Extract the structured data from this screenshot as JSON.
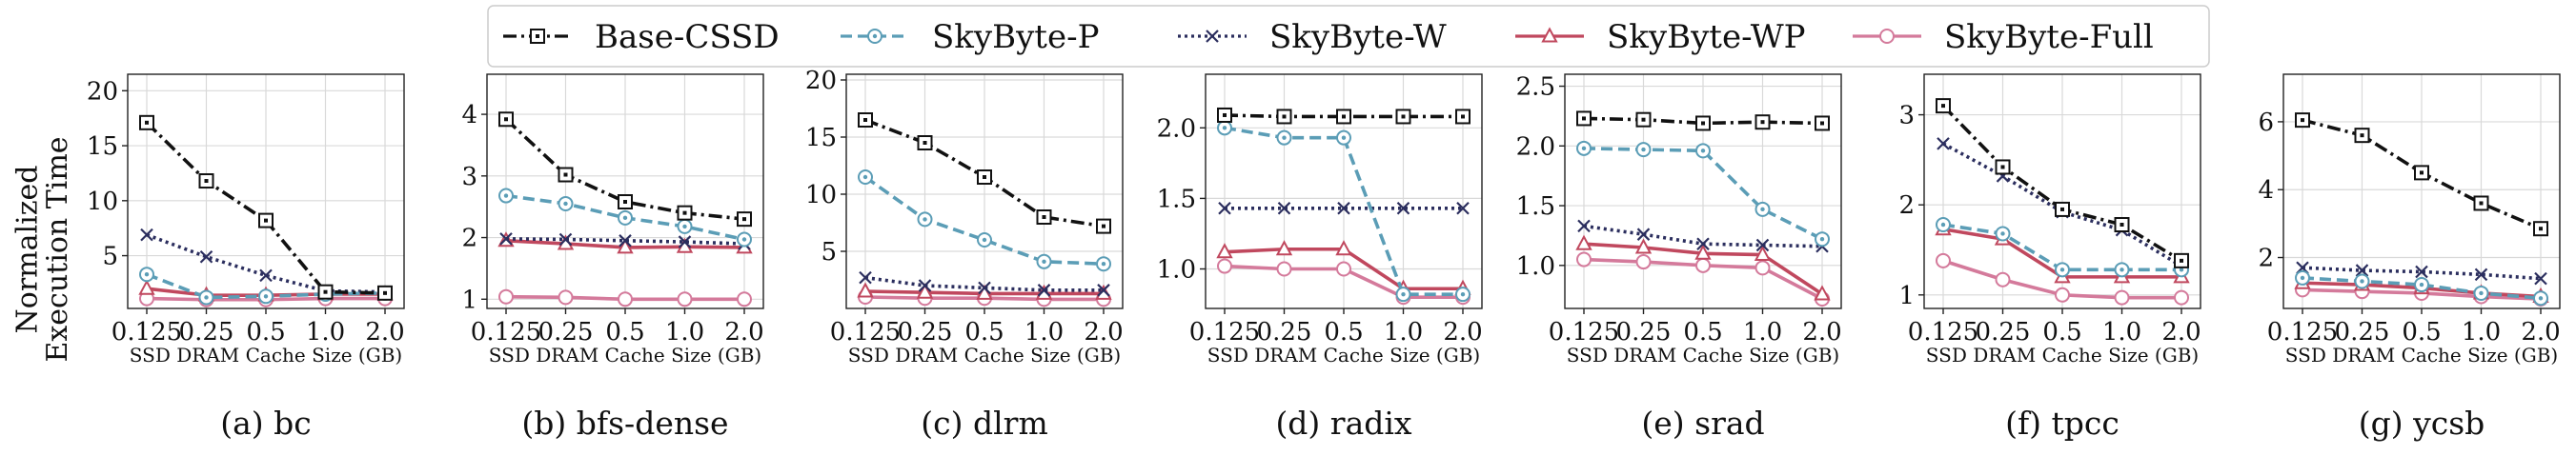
{
  "figure": {
    "ylabel_lines": [
      "Normalized",
      "Execution Time"
    ],
    "xlabel": "SSD DRAM Cache Size (GB)"
  },
  "legend": [
    {
      "name": "Base-CSSD",
      "color": "#111111",
      "dash": "dashdot",
      "marker": "square-dot"
    },
    {
      "name": "SkyByte-P",
      "color": "#5b9db6",
      "dash": "dashed",
      "marker": "circle-dot"
    },
    {
      "name": "SkyByte-W",
      "color": "#2b2e5e",
      "dash": "dotted",
      "marker": "x"
    },
    {
      "name": "SkyByte-WP",
      "color": "#c0485e",
      "dash": "solid",
      "marker": "triangle"
    },
    {
      "name": "SkyByte-Full",
      "color": "#d47a9b",
      "dash": "solid",
      "marker": "circle"
    }
  ],
  "chart_data": [
    {
      "type": "line",
      "title": "(a) bc",
      "xlabel": "SSD DRAM Cache Size (GB)",
      "ylabel": "Normalized Execution Time",
      "categories": [
        "0.125",
        "0.25",
        "0.5",
        "1.0",
        "2.0"
      ],
      "ylim": [
        0.2,
        21.5
      ],
      "yticks": [
        "5",
        "10",
        "15",
        "20"
      ],
      "ytick_values": [
        5,
        10,
        15,
        20
      ],
      "grid": true,
      "series": [
        {
          "name": "Base-CSSD",
          "values": [
            17.1,
            11.8,
            8.2,
            1.7,
            1.6
          ]
        },
        {
          "name": "SkyByte-P",
          "values": [
            3.3,
            1.2,
            1.3,
            1.5,
            1.6
          ]
        },
        {
          "name": "SkyByte-W",
          "values": [
            6.9,
            4.9,
            3.2,
            1.8,
            1.7
          ]
        },
        {
          "name": "SkyByte-WP",
          "values": [
            2.0,
            1.4,
            1.4,
            1.5,
            1.5
          ]
        },
        {
          "name": "SkyByte-Full",
          "values": [
            1.1,
            1.0,
            1.0,
            1.1,
            1.1
          ]
        }
      ]
    },
    {
      "type": "line",
      "title": "(b) bfs-dense",
      "xlabel": "SSD DRAM Cache Size (GB)",
      "ylabel": "",
      "categories": [
        "0.125",
        "0.25",
        "0.5",
        "1.0",
        "2.0"
      ],
      "ylim": [
        0.85,
        4.65
      ],
      "yticks": [
        "1",
        "2",
        "3",
        "4"
      ],
      "ytick_values": [
        1,
        2,
        3,
        4
      ],
      "grid": true,
      "series": [
        {
          "name": "Base-CSSD",
          "values": [
            3.92,
            3.02,
            2.58,
            2.4,
            2.3
          ]
        },
        {
          "name": "SkyByte-P",
          "values": [
            2.68,
            2.55,
            2.32,
            2.18,
            1.97
          ]
        },
        {
          "name": "SkyByte-W",
          "values": [
            1.98,
            1.97,
            1.95,
            1.93,
            1.9
          ]
        },
        {
          "name": "SkyByte-WP",
          "values": [
            1.95,
            1.9,
            1.84,
            1.85,
            1.84
          ]
        },
        {
          "name": "SkyByte-Full",
          "values": [
            1.04,
            1.03,
            1.0,
            1.0,
            1.0
          ]
        }
      ]
    },
    {
      "type": "line",
      "title": "(c) dlrm",
      "xlabel": "SSD DRAM Cache Size (GB)",
      "ylabel": "",
      "categories": [
        "0.125",
        "0.25",
        "0.5",
        "1.0",
        "2.0"
      ],
      "ylim": [
        0.0,
        20.5
      ],
      "yticks": [
        "5",
        "10",
        "15",
        "20"
      ],
      "ytick_values": [
        5,
        10,
        15,
        20
      ],
      "grid": true,
      "series": [
        {
          "name": "Base-CSSD",
          "values": [
            16.5,
            14.5,
            11.5,
            8.0,
            7.2
          ]
        },
        {
          "name": "SkyByte-P",
          "values": [
            11.5,
            7.8,
            6.0,
            4.1,
            3.9
          ]
        },
        {
          "name": "SkyByte-W",
          "values": [
            2.7,
            2.0,
            1.8,
            1.6,
            1.6
          ]
        },
        {
          "name": "SkyByte-WP",
          "values": [
            1.5,
            1.4,
            1.3,
            1.3,
            1.3
          ]
        },
        {
          "name": "SkyByte-Full",
          "values": [
            1.0,
            0.9,
            0.9,
            0.8,
            0.8
          ]
        }
      ]
    },
    {
      "type": "line",
      "title": "(d) radix",
      "xlabel": "SSD DRAM Cache Size (GB)",
      "ylabel": "",
      "categories": [
        "0.125",
        "0.25",
        "0.5",
        "1.0",
        "2.0"
      ],
      "ylim": [
        0.72,
        2.38
      ],
      "yticks": [
        "1.0",
        "1.5",
        "2.0"
      ],
      "ytick_values": [
        1.0,
        1.5,
        2.0
      ],
      "grid": true,
      "series": [
        {
          "name": "Base-CSSD",
          "values": [
            2.09,
            2.08,
            2.08,
            2.08,
            2.08
          ]
        },
        {
          "name": "SkyByte-P",
          "values": [
            2.0,
            1.93,
            1.93,
            0.82,
            0.82
          ]
        },
        {
          "name": "SkyByte-W",
          "values": [
            1.43,
            1.43,
            1.43,
            1.43,
            1.43
          ]
        },
        {
          "name": "SkyByte-WP",
          "values": [
            1.12,
            1.14,
            1.14,
            0.86,
            0.86
          ]
        },
        {
          "name": "SkyByte-Full",
          "values": [
            1.02,
            1.0,
            1.0,
            0.8,
            0.8
          ]
        }
      ]
    },
    {
      "type": "line",
      "title": "(e) srad",
      "xlabel": "SSD DRAM Cache Size (GB)",
      "ylabel": "",
      "categories": [
        "0.125",
        "0.25",
        "0.5",
        "1.0",
        "2.0"
      ],
      "ylim": [
        0.64,
        2.6
      ],
      "yticks": [
        "1.0",
        "1.5",
        "2.0",
        "2.5"
      ],
      "ytick_values": [
        1.0,
        1.5,
        2.0,
        2.5
      ],
      "grid": true,
      "series": [
        {
          "name": "Base-CSSD",
          "values": [
            2.23,
            2.22,
            2.19,
            2.2,
            2.19
          ]
        },
        {
          "name": "SkyByte-P",
          "values": [
            1.98,
            1.97,
            1.96,
            1.47,
            1.22
          ]
        },
        {
          "name": "SkyByte-W",
          "values": [
            1.33,
            1.26,
            1.18,
            1.17,
            1.16
          ]
        },
        {
          "name": "SkyByte-WP",
          "values": [
            1.18,
            1.15,
            1.1,
            1.09,
            0.76
          ]
        },
        {
          "name": "SkyByte-Full",
          "values": [
            1.05,
            1.03,
            1.0,
            0.98,
            0.72
          ]
        }
      ]
    },
    {
      "type": "line",
      "title": "(f) tpcc",
      "xlabel": "SSD DRAM Cache Size (GB)",
      "ylabel": "",
      "categories": [
        "0.125",
        "0.25",
        "0.5",
        "1.0",
        "2.0"
      ],
      "ylim": [
        0.85,
        3.45
      ],
      "yticks": [
        "1",
        "2",
        "3"
      ],
      "ytick_values": [
        1,
        2,
        3
      ],
      "grid": true,
      "series": [
        {
          "name": "Base-CSSD",
          "values": [
            3.1,
            2.42,
            1.95,
            1.78,
            1.38
          ]
        },
        {
          "name": "SkyByte-P",
          "values": [
            1.78,
            1.68,
            1.28,
            1.28,
            1.28
          ]
        },
        {
          "name": "SkyByte-W",
          "values": [
            2.68,
            2.32,
            1.92,
            1.72,
            1.32
          ]
        },
        {
          "name": "SkyByte-WP",
          "values": [
            1.73,
            1.62,
            1.2,
            1.2,
            1.2
          ]
        },
        {
          "name": "SkyByte-Full",
          "values": [
            1.38,
            1.17,
            1.0,
            0.97,
            0.97
          ]
        }
      ]
    },
    {
      "type": "line",
      "title": "(g) ycsb",
      "xlabel": "SSD DRAM Cache Size (GB)",
      "ylabel": "",
      "categories": [
        "0.125",
        "0.25",
        "0.5",
        "1.0",
        "2.0"
      ],
      "ylim": [
        0.5,
        7.4
      ],
      "yticks": [
        "2",
        "4",
        "6"
      ],
      "ytick_values": [
        2,
        4,
        6
      ],
      "grid": true,
      "series": [
        {
          "name": "Base-CSSD",
          "values": [
            6.05,
            5.6,
            4.5,
            3.6,
            2.85
          ]
        },
        {
          "name": "SkyByte-P",
          "values": [
            1.4,
            1.3,
            1.2,
            0.95,
            0.8
          ]
        },
        {
          "name": "SkyByte-W",
          "values": [
            1.7,
            1.62,
            1.58,
            1.5,
            1.38
          ]
        },
        {
          "name": "SkyByte-WP",
          "values": [
            1.25,
            1.2,
            1.1,
            0.95,
            0.85
          ]
        },
        {
          "name": "SkyByte-Full",
          "values": [
            1.05,
            1.0,
            0.95,
            0.85,
            0.78
          ]
        }
      ]
    }
  ]
}
